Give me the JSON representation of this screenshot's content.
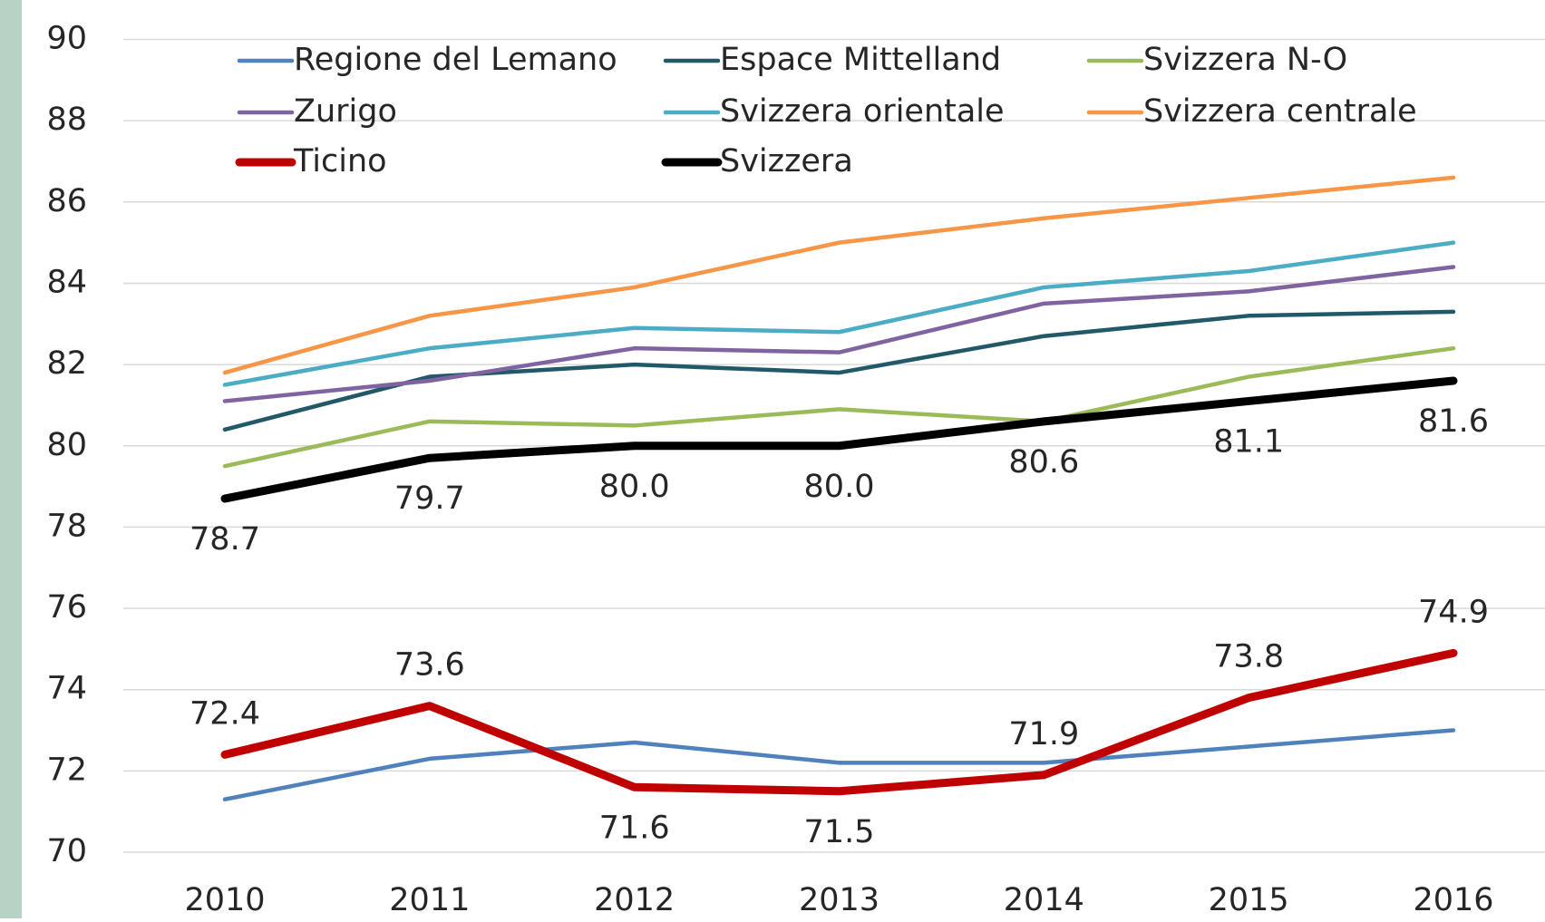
{
  "chart_data": {
    "type": "line",
    "categories": [
      "2010",
      "2011",
      "2012",
      "2013",
      "2014",
      "2015",
      "2016"
    ],
    "ylim": [
      70,
      90
    ],
    "yticks": [
      70,
      72,
      74,
      76,
      78,
      80,
      82,
      84,
      86,
      88,
      90
    ],
    "grid": true,
    "series": [
      {
        "name": "Regione del Lemano",
        "color": "#4f81bd",
        "values": [
          71.3,
          72.3,
          72.7,
          72.2,
          72.2,
          72.6,
          73.0
        ]
      },
      {
        "name": "Espace Mittelland",
        "color": "#215968",
        "values": [
          80.4,
          81.7,
          82.0,
          81.8,
          82.7,
          83.2,
          83.3
        ]
      },
      {
        "name": "Svizzera N-O",
        "color": "#9bbb59",
        "values": [
          79.5,
          80.6,
          80.5,
          80.9,
          80.6,
          81.7,
          82.4
        ]
      },
      {
        "name": "Zurigo",
        "color": "#8064a2",
        "values": [
          81.1,
          81.6,
          82.4,
          82.3,
          83.5,
          83.8,
          84.4
        ]
      },
      {
        "name": "Svizzera orientale",
        "color": "#4bacc6",
        "values": [
          81.5,
          82.4,
          82.9,
          82.8,
          83.9,
          84.3,
          85.0
        ]
      },
      {
        "name": "Svizzera centrale",
        "color": "#f79646",
        "values": [
          81.8,
          83.2,
          83.9,
          85.0,
          85.6,
          86.1,
          86.6
        ]
      },
      {
        "name": "Ticino",
        "color": "#c00000",
        "values": [
          72.4,
          73.6,
          71.6,
          71.5,
          71.9,
          73.8,
          74.9
        ]
      },
      {
        "name": "Svizzera",
        "color": "#000000",
        "values": [
          78.7,
          79.7,
          80.0,
          80.0,
          80.6,
          81.1,
          81.6
        ],
        "value_labels": [
          "78.7",
          "79.7",
          "80.0",
          "80.0",
          "80.6",
          "81.1",
          "81.6"
        ]
      }
    ]
  }
}
